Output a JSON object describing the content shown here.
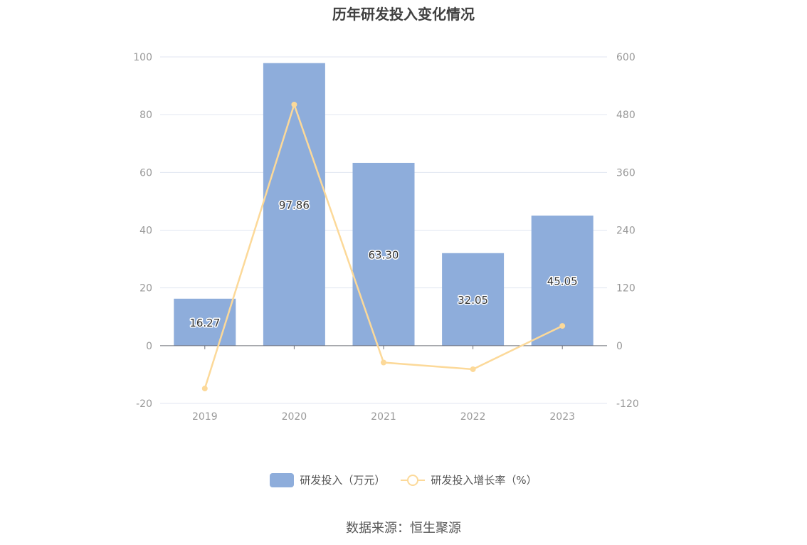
{
  "chart_data": {
    "type": "bar",
    "title": "历年研发投入变化情况",
    "categories": [
      "2019",
      "2020",
      "2021",
      "2022",
      "2023"
    ],
    "series": [
      {
        "name": "研发投入（万元）",
        "type": "bar",
        "axis": "left",
        "values": [
          16.27,
          97.86,
          63.3,
          32.05,
          45.05
        ],
        "labels": [
          "16.27",
          "97.86",
          "63.30",
          "32.05",
          "45.05"
        ]
      },
      {
        "name": "研发投入增长率（%）",
        "type": "line",
        "axis": "right",
        "values": [
          -89,
          501,
          -35,
          -49,
          41
        ]
      }
    ],
    "y_left": {
      "min": -20,
      "max": 100,
      "ticks": [
        "-20",
        "0",
        "20",
        "40",
        "60",
        "80",
        "100"
      ]
    },
    "y_right": {
      "min": -120,
      "max": 600,
      "ticks": [
        "-120",
        "0",
        "120",
        "240",
        "360",
        "480",
        "600"
      ]
    },
    "grid": true,
    "legend_position": "bottom",
    "colors": {
      "bar": "#8eaddb",
      "line": "#fcd999",
      "grid": "#e0e6f1",
      "axis_text": "#999999"
    }
  },
  "source": "数据来源：恒生聚源"
}
